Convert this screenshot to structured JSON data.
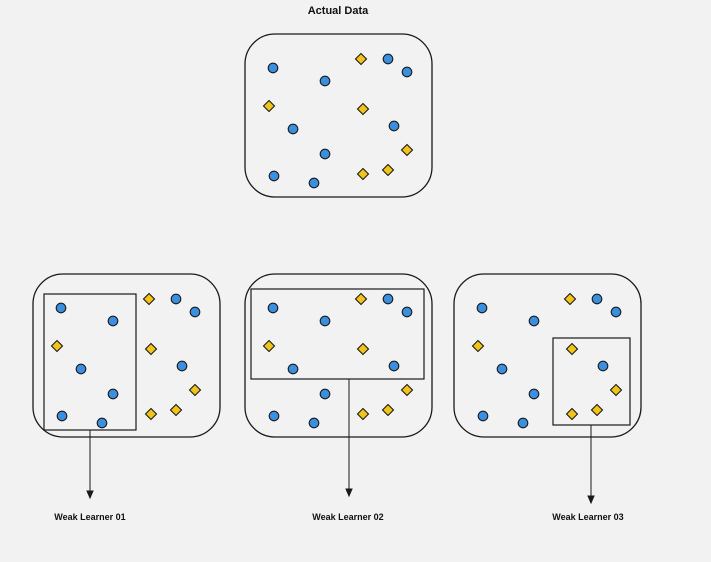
{
  "title": "Actual Data",
  "panels": [
    {
      "label": ""
    },
    {
      "label": "Weak Learner 01"
    },
    {
      "label": "Weak Learner 02"
    },
    {
      "label": "Weak Learner 03"
    }
  ],
  "colors": {
    "circle_fill": "#3a8fde",
    "diamond_fill": "#f2c318",
    "outline": "#1a1a1a",
    "background": "#f2f2f2"
  },
  "shape_names": [
    "circle",
    "diamond"
  ]
}
